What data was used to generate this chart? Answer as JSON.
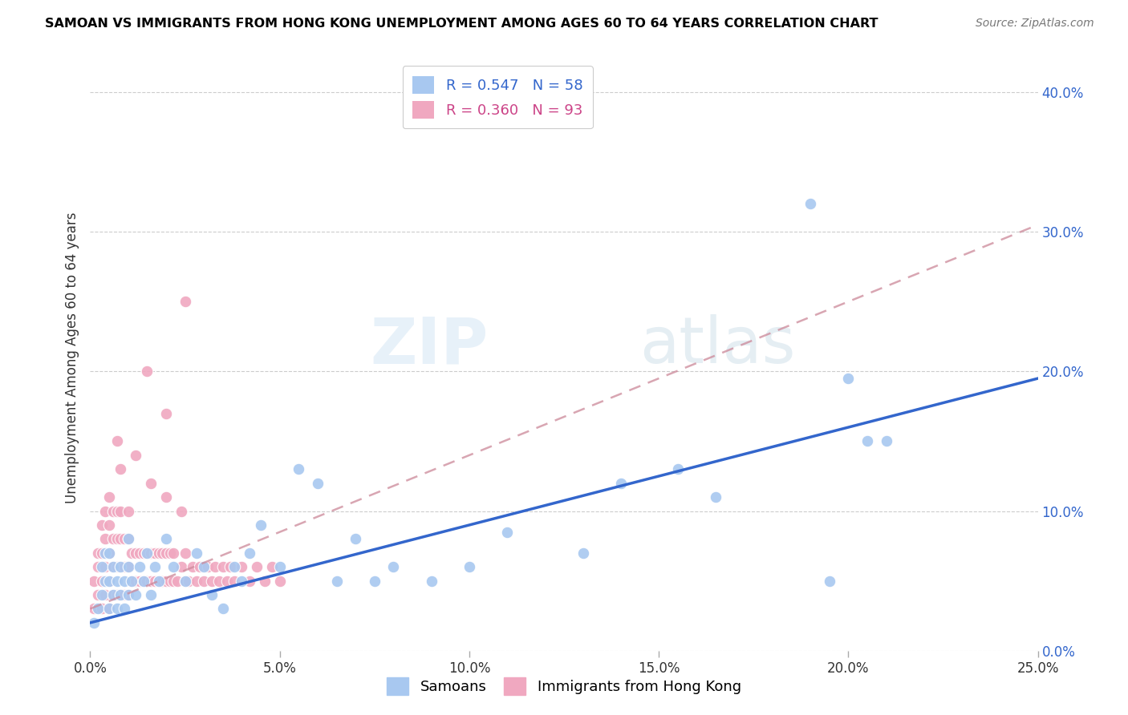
{
  "title": "SAMOAN VS IMMIGRANTS FROM HONG KONG UNEMPLOYMENT AMONG AGES 60 TO 64 YEARS CORRELATION CHART",
  "source": "Source: ZipAtlas.com",
  "ylabel": "Unemployment Among Ages 60 to 64 years",
  "x_tick_labels": [
    "0.0%",
    "5.0%",
    "10.0%",
    "15.0%",
    "20.0%",
    "25.0%"
  ],
  "x_tick_values": [
    0.0,
    0.05,
    0.1,
    0.15,
    0.2,
    0.25
  ],
  "y_tick_labels": [
    "0.0%",
    "10.0%",
    "20.0%",
    "30.0%",
    "40.0%"
  ],
  "y_tick_values": [
    0.0,
    0.1,
    0.2,
    0.3,
    0.4
  ],
  "xlim": [
    0.0,
    0.25
  ],
  "ylim": [
    0.0,
    0.42
  ],
  "samoans_color": "#a8c8f0",
  "hk_color": "#f0a8c0",
  "samoans_R": 0.547,
  "samoans_N": 58,
  "hk_R": 0.36,
  "hk_N": 93,
  "samoans_line_color": "#3366cc",
  "hk_line_color": "#cc8899",
  "watermark_zip": "ZIP",
  "watermark_atlas": "atlas",
  "sam_line_x0": 0.0,
  "sam_line_y0": 0.02,
  "sam_line_x1": 0.25,
  "sam_line_y1": 0.195,
  "hk_line_x0": 0.0,
  "hk_line_y0": 0.03,
  "hk_line_x1": 0.25,
  "hk_line_y1": 0.305,
  "samoans_x": [
    0.001,
    0.002,
    0.003,
    0.003,
    0.004,
    0.004,
    0.005,
    0.005,
    0.005,
    0.006,
    0.006,
    0.007,
    0.007,
    0.008,
    0.008,
    0.009,
    0.009,
    0.01,
    0.01,
    0.01,
    0.011,
    0.012,
    0.013,
    0.014,
    0.015,
    0.016,
    0.017,
    0.018,
    0.02,
    0.022,
    0.025,
    0.028,
    0.03,
    0.032,
    0.035,
    0.038,
    0.04,
    0.042,
    0.045,
    0.05,
    0.055,
    0.06,
    0.065,
    0.07,
    0.075,
    0.08,
    0.09,
    0.1,
    0.11,
    0.13,
    0.14,
    0.155,
    0.165,
    0.19,
    0.195,
    0.2,
    0.205,
    0.21
  ],
  "samoans_y": [
    0.02,
    0.03,
    0.04,
    0.06,
    0.05,
    0.07,
    0.03,
    0.05,
    0.07,
    0.04,
    0.06,
    0.03,
    0.05,
    0.04,
    0.06,
    0.03,
    0.05,
    0.04,
    0.06,
    0.08,
    0.05,
    0.04,
    0.06,
    0.05,
    0.07,
    0.04,
    0.06,
    0.05,
    0.08,
    0.06,
    0.05,
    0.07,
    0.06,
    0.04,
    0.03,
    0.06,
    0.05,
    0.07,
    0.09,
    0.06,
    0.13,
    0.12,
    0.05,
    0.08,
    0.05,
    0.06,
    0.05,
    0.06,
    0.085,
    0.07,
    0.12,
    0.13,
    0.11,
    0.32,
    0.05,
    0.195,
    0.15,
    0.15
  ],
  "hk_x": [
    0.001,
    0.001,
    0.002,
    0.002,
    0.002,
    0.003,
    0.003,
    0.003,
    0.003,
    0.004,
    0.004,
    0.004,
    0.004,
    0.005,
    0.005,
    0.005,
    0.005,
    0.005,
    0.006,
    0.006,
    0.006,
    0.006,
    0.007,
    0.007,
    0.007,
    0.007,
    0.008,
    0.008,
    0.008,
    0.008,
    0.009,
    0.009,
    0.009,
    0.01,
    0.01,
    0.01,
    0.01,
    0.011,
    0.011,
    0.012,
    0.012,
    0.013,
    0.013,
    0.014,
    0.014,
    0.015,
    0.015,
    0.016,
    0.016,
    0.017,
    0.017,
    0.018,
    0.018,
    0.019,
    0.019,
    0.02,
    0.02,
    0.021,
    0.021,
    0.022,
    0.022,
    0.023,
    0.024,
    0.025,
    0.025,
    0.026,
    0.027,
    0.028,
    0.029,
    0.03,
    0.031,
    0.032,
    0.033,
    0.034,
    0.035,
    0.036,
    0.037,
    0.038,
    0.04,
    0.042,
    0.044,
    0.046,
    0.048,
    0.05,
    0.015,
    0.02,
    0.025,
    0.007,
    0.008,
    0.012,
    0.016,
    0.02,
    0.024
  ],
  "hk_y": [
    0.03,
    0.05,
    0.04,
    0.06,
    0.07,
    0.03,
    0.05,
    0.07,
    0.09,
    0.04,
    0.06,
    0.08,
    0.1,
    0.03,
    0.05,
    0.07,
    0.09,
    0.11,
    0.04,
    0.06,
    0.08,
    0.1,
    0.04,
    0.06,
    0.08,
    0.1,
    0.04,
    0.06,
    0.08,
    0.1,
    0.04,
    0.06,
    0.08,
    0.04,
    0.06,
    0.08,
    0.1,
    0.05,
    0.07,
    0.05,
    0.07,
    0.05,
    0.07,
    0.05,
    0.07,
    0.05,
    0.07,
    0.05,
    0.07,
    0.05,
    0.07,
    0.05,
    0.07,
    0.05,
    0.07,
    0.05,
    0.07,
    0.05,
    0.07,
    0.05,
    0.07,
    0.05,
    0.06,
    0.05,
    0.07,
    0.05,
    0.06,
    0.05,
    0.06,
    0.05,
    0.06,
    0.05,
    0.06,
    0.05,
    0.06,
    0.05,
    0.06,
    0.05,
    0.06,
    0.05,
    0.06,
    0.05,
    0.06,
    0.05,
    0.2,
    0.17,
    0.25,
    0.15,
    0.13,
    0.14,
    0.12,
    0.11,
    0.1
  ]
}
